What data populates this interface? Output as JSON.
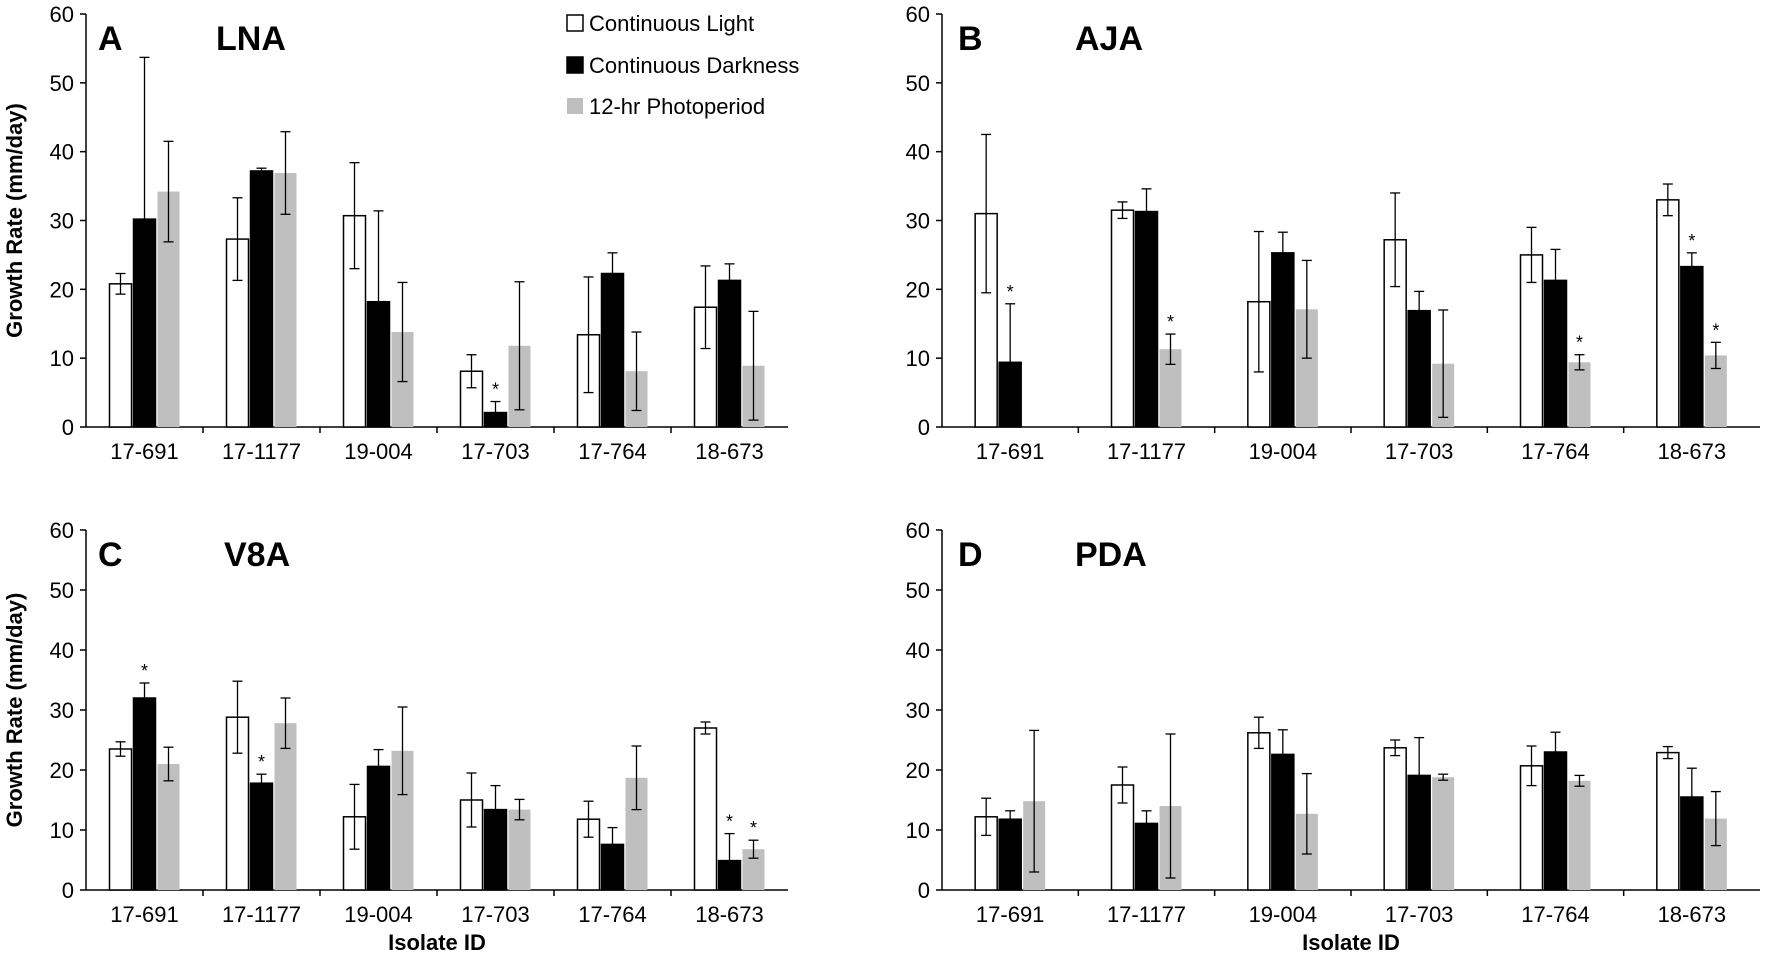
{
  "figure": {
    "legend": [
      "Continuous Light",
      "Continuous Darkness",
      "12-hr Photoperiod"
    ],
    "colors": {
      "continuous_light": "#ffffff",
      "continuous_darkness": "#000000",
      "photoperiod": "#bfbfbf"
    }
  },
  "chart_data": [
    {
      "type": "bar",
      "panel": "A",
      "title": "LNA",
      "xlabel": "",
      "ylabel": "Growth Rate (mm/day)",
      "ylim": [
        0,
        60
      ],
      "yticks": [
        "0",
        "10",
        "20",
        "30",
        "40",
        "50",
        "60"
      ],
      "categories": [
        "17-691",
        "17-1177",
        "19-004",
        "17-703",
        "17-764",
        "18-673"
      ],
      "series": [
        {
          "name": "Continuous Light",
          "values": [
            20.8,
            27.3,
            30.7,
            8.1,
            13.4,
            17.4
          ],
          "errors": [
            1.5,
            6,
            7.7,
            2.4,
            8.4,
            6
          ],
          "significant": [
            false,
            false,
            false,
            false,
            false,
            false
          ]
        },
        {
          "name": "Continuous Darkness",
          "values": [
            30.2,
            37.2,
            18.2,
            2.1,
            22.3,
            21.3
          ],
          "errors": [
            23.5,
            0.4,
            13.2,
            1.6,
            3,
            2.4
          ],
          "significant": [
            false,
            false,
            false,
            true,
            false,
            false
          ]
        },
        {
          "name": "12-hr Photoperiod",
          "values": [
            34.2,
            36.9,
            13.8,
            11.8,
            8.1,
            8.9
          ],
          "errors": [
            7.3,
            6,
            7.2,
            9.3,
            5.7,
            7.9
          ],
          "significant": [
            false,
            false,
            false,
            false,
            false,
            false
          ]
        }
      ]
    },
    {
      "type": "bar",
      "panel": "B",
      "title": "AJA",
      "xlabel": "",
      "ylabel": "",
      "ylim": [
        0,
        60
      ],
      "yticks": [
        "0",
        "10",
        "20",
        "30",
        "40",
        "50",
        "60"
      ],
      "categories": [
        "17-691",
        "17-1177",
        "19-004",
        "17-703",
        "17-764",
        "18-673"
      ],
      "series": [
        {
          "name": "Continuous Light",
          "values": [
            31,
            31.5,
            18.2,
            27.2,
            25,
            33
          ],
          "errors": [
            11.5,
            1.2,
            10.2,
            6.8,
            4,
            2.3
          ],
          "significant": [
            false,
            false,
            false,
            false,
            false,
            false
          ]
        },
        {
          "name": "Continuous Darkness",
          "values": [
            9.4,
            31.3,
            25.3,
            16.9,
            21.3,
            23.3
          ],
          "errors": [
            8.5,
            3.3,
            3,
            2.8,
            4.5,
            2
          ],
          "significant": [
            true,
            false,
            false,
            false,
            false,
            true
          ]
        },
        {
          "name": "12-hr Photoperiod",
          "values": [
            0,
            11.3,
            17.1,
            9.2,
            9.4,
            10.4
          ],
          "errors": [
            0,
            2.2,
            7.1,
            7.8,
            1.1,
            1.9
          ],
          "significant": [
            false,
            true,
            false,
            false,
            true,
            true
          ]
        }
      ]
    },
    {
      "type": "bar",
      "panel": "C",
      "title": "V8A",
      "xlabel": "Isolate ID",
      "ylabel": "Growth Rate (mm/day)",
      "ylim": [
        0,
        60
      ],
      "yticks": [
        "0",
        "10",
        "20",
        "30",
        "40",
        "50",
        "60"
      ],
      "categories": [
        "17-691",
        "17-1177",
        "19-004",
        "17-703",
        "17-764",
        "18-673"
      ],
      "series": [
        {
          "name": "Continuous Light",
          "values": [
            23.5,
            28.8,
            12.2,
            15,
            11.8,
            27
          ],
          "errors": [
            1.2,
            6,
            5.4,
            4.5,
            3,
            1
          ],
          "significant": [
            false,
            false,
            false,
            false,
            false,
            false
          ]
        },
        {
          "name": "Continuous Darkness",
          "values": [
            32,
            17.8,
            20.6,
            13.4,
            7.6,
            4.9
          ],
          "errors": [
            2.5,
            1.5,
            2.8,
            4,
            2.8,
            4.5
          ],
          "significant": [
            true,
            true,
            false,
            false,
            false,
            true
          ]
        },
        {
          "name": "12-hr Photoperiod",
          "values": [
            21,
            27.8,
            23.2,
            13.4,
            18.7,
            6.8
          ],
          "errors": [
            2.8,
            4.2,
            7.3,
            1.7,
            5.3,
            1.5
          ],
          "significant": [
            false,
            false,
            false,
            false,
            false,
            true
          ]
        }
      ]
    },
    {
      "type": "bar",
      "panel": "D",
      "title": "PDA",
      "xlabel": "Isolate ID",
      "ylabel": "",
      "ylim": [
        0,
        60
      ],
      "yticks": [
        "0",
        "10",
        "20",
        "30",
        "40",
        "50",
        "60"
      ],
      "categories": [
        "17-691",
        "17-1177",
        "19-004",
        "17-703",
        "17-764",
        "18-673"
      ],
      "series": [
        {
          "name": "Continuous Light",
          "values": [
            12.2,
            17.5,
            26.2,
            23.7,
            20.7,
            22.9
          ],
          "errors": [
            3.1,
            3,
            2.6,
            1.3,
            3.3,
            1
          ],
          "significant": [
            false,
            false,
            false,
            false,
            false,
            false
          ]
        },
        {
          "name": "Continuous Darkness",
          "values": [
            11.8,
            11.1,
            22.6,
            19.1,
            23,
            15.5
          ],
          "errors": [
            1.4,
            2.1,
            4.1,
            6.3,
            3.3,
            4.8
          ],
          "significant": [
            false,
            false,
            false,
            false,
            false,
            false
          ]
        },
        {
          "name": "12-hr Photoperiod",
          "values": [
            14.8,
            14,
            12.7,
            18.8,
            18.2,
            11.9
          ],
          "errors": [
            11.8,
            12,
            6.7,
            0.5,
            0.9,
            4.5
          ],
          "significant": [
            false,
            false,
            false,
            false,
            false,
            false
          ]
        }
      ]
    }
  ]
}
